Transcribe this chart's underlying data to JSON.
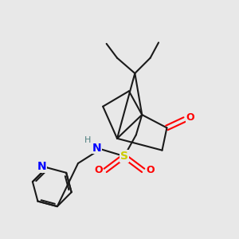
{
  "background_color": "#e8e8e8",
  "bond_color": "#1a1a1a",
  "bond_width": 1.5,
  "atom_colors": {
    "N": "#0000ff",
    "S": "#cccc00",
    "O": "#ff0000",
    "H": "#508080",
    "C": "#1a1a1a"
  },
  "figsize": [
    3.0,
    3.0
  ],
  "dpi": 100
}
